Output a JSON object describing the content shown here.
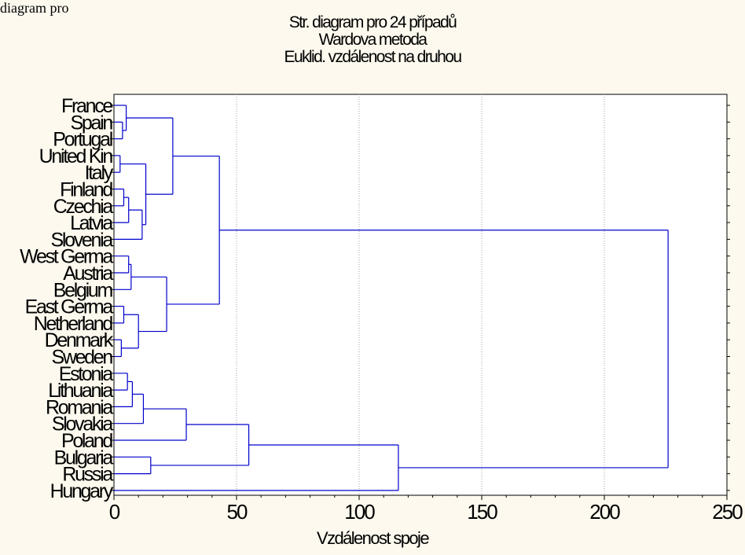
{
  "caption": "diagram pro",
  "chart_data": {
    "type": "dendrogram",
    "title": [
      "Str. diagram pro 24 případů",
      "Wardova metoda",
      "Euklid. vzdálenost na druhou"
    ],
    "xlabel": "Vzdálenost spoje",
    "ylabel": "",
    "xlim": [
      0,
      250
    ],
    "xticks": [
      0,
      50,
      100,
      150,
      200,
      250
    ],
    "grid": "vertical dotted",
    "line_color": "#0000cc",
    "leaves": [
      "France",
      "Spain",
      "Portugal",
      "United Kin",
      "Italy",
      "Finland",
      "Czechia",
      "Latvia",
      "Slovenia",
      "West Germa",
      "Austria",
      "Belgium",
      "East Germa",
      "Netherland",
      "Denmark",
      "Sweden",
      "Estonia",
      "Lithuania",
      "Romania",
      "Slovakia",
      "Poland",
      "Bulgaria",
      "Russia",
      "Hungary"
    ],
    "merges": [
      {
        "a": "L1",
        "b": "L2",
        "h": 3.5
      },
      {
        "a": "L0",
        "b": "N0",
        "h": 5.0
      },
      {
        "a": "L3",
        "b": "L4",
        "h": 2.5
      },
      {
        "a": "L5",
        "b": "L6",
        "h": 4.0
      },
      {
        "a": "N3",
        "b": "L7",
        "h": 6.0
      },
      {
        "a": "N4",
        "b": "L8",
        "h": 11.5
      },
      {
        "a": "N2",
        "b": "N5",
        "h": 13.0
      },
      {
        "a": "N1",
        "b": "N6",
        "h": 24.0
      },
      {
        "a": "L9",
        "b": "L10",
        "h": 6.0
      },
      {
        "a": "N8",
        "b": "L11",
        "h": 7.0
      },
      {
        "a": "L12",
        "b": "L13",
        "h": 4.0
      },
      {
        "a": "L14",
        "b": "L15",
        "h": 3.0
      },
      {
        "a": "N10",
        "b": "N11",
        "h": 10.0
      },
      {
        "a": "N9",
        "b": "N12",
        "h": 21.5
      },
      {
        "a": "N7",
        "b": "N13",
        "h": 43.0
      },
      {
        "a": "L16",
        "b": "L17",
        "h": 5.5
      },
      {
        "a": "N15",
        "b": "L18",
        "h": 7.5
      },
      {
        "a": "N16",
        "b": "L19",
        "h": 12.0
      },
      {
        "a": "N17",
        "b": "L20",
        "h": 29.5
      },
      {
        "a": "L21",
        "b": "L22",
        "h": 15.0
      },
      {
        "a": "N18",
        "b": "N19",
        "h": 55.0
      },
      {
        "a": "N20",
        "b": "L23",
        "h": 116.0
      },
      {
        "a": "N14",
        "b": "N21",
        "h": 226.0
      }
    ]
  }
}
